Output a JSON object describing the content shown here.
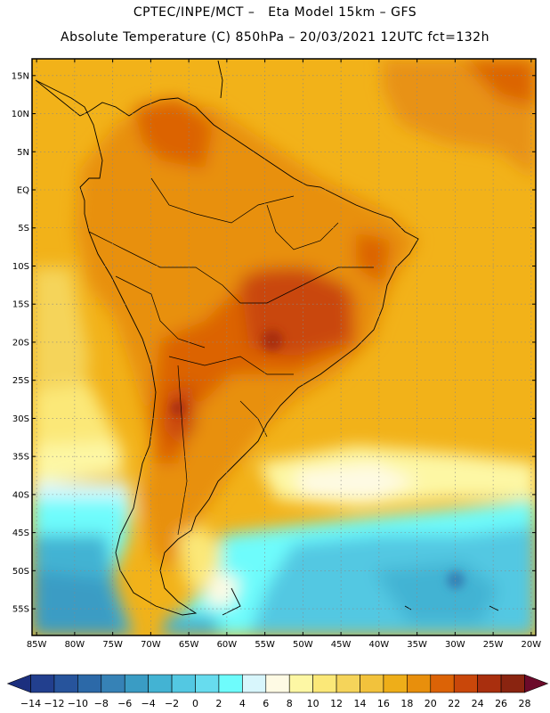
{
  "header": {
    "line1": "CPTEC/INPE/MCT –   Eta Model 15km – GFS",
    "line2": "Absolute Temperature (C) 850hPa – 20/03/2021 12UTC fct=132h"
  },
  "map": {
    "lon_range": [
      -85.6,
      -19.4
    ],
    "lat_range": [
      -58.5,
      17.2
    ],
    "lat_ticks": [
      {
        "value": 15,
        "label": "15N"
      },
      {
        "value": 10,
        "label": "10N"
      },
      {
        "value": 5,
        "label": "5N"
      },
      {
        "value": 0,
        "label": "EQ"
      },
      {
        "value": -5,
        "label": "5S"
      },
      {
        "value": -10,
        "label": "10S"
      },
      {
        "value": -15,
        "label": "15S"
      },
      {
        "value": -20,
        "label": "20S"
      },
      {
        "value": -25,
        "label": "25S"
      },
      {
        "value": -30,
        "label": "30S"
      },
      {
        "value": -35,
        "label": "35S"
      },
      {
        "value": -40,
        "label": "40S"
      },
      {
        "value": -45,
        "label": "45S"
      },
      {
        "value": -50,
        "label": "50S"
      },
      {
        "value": -55,
        "label": "55S"
      }
    ],
    "lon_ticks": [
      {
        "value": -85,
        "label": "85W"
      },
      {
        "value": -80,
        "label": "80W"
      },
      {
        "value": -75,
        "label": "75W"
      },
      {
        "value": -70,
        "label": "70W"
      },
      {
        "value": -65,
        "label": "65W"
      },
      {
        "value": -60,
        "label": "60W"
      },
      {
        "value": -55,
        "label": "55W"
      },
      {
        "value": -50,
        "label": "50W"
      },
      {
        "value": -45,
        "label": "45W"
      },
      {
        "value": -40,
        "label": "40W"
      },
      {
        "value": -35,
        "label": "35W"
      },
      {
        "value": -30,
        "label": "30W"
      },
      {
        "value": -25,
        "label": "25W"
      },
      {
        "value": -20,
        "label": "20W"
      }
    ]
  },
  "legend": {
    "labels": [
      "-14",
      "-12",
      "-10",
      "-8",
      "-6",
      "-4",
      "-2",
      "0",
      "2",
      "4",
      "6",
      "8",
      "10",
      "12",
      "14",
      "16",
      "18",
      "20",
      "22",
      "24",
      "26",
      "28"
    ],
    "colors": {
      "below": "#1c2f7e",
      "bins": [
        "#223f8e",
        "#27549c",
        "#2c69a8",
        "#3682b6",
        "#3a9cc4",
        "#43b3d3",
        "#53c8e2",
        "#67dcee",
        "#6efcfc",
        "#d8f6fc",
        "#fefae4",
        "#fdf7a4",
        "#fbe878",
        "#f5d45a",
        "#f2c23c",
        "#eeae19",
        "#e88f0c",
        "#dc6306",
        "#c9470a",
        "#a92f0e",
        "#8a2410"
      ],
      "above": "#6c0a2a"
    }
  }
}
